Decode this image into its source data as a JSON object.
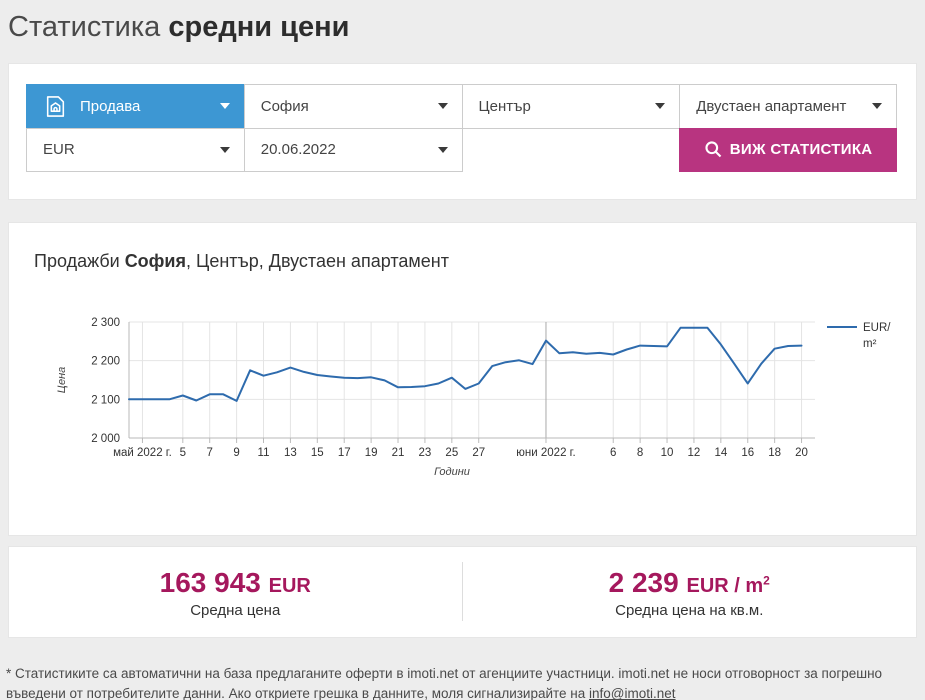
{
  "page": {
    "accent_blue": "#3d97d3",
    "accent_magenta": "#b83480",
    "stat_color": "#a5185d",
    "line_color": "#2e6bad"
  },
  "header": {
    "title_light": "Статистика",
    "title_bold": "средни цени"
  },
  "filters": {
    "deal_type": {
      "value": "Продава"
    },
    "city": {
      "value": "София"
    },
    "district": {
      "value": "Център"
    },
    "property_type": {
      "value": "Двустаен апартамент"
    },
    "currency": {
      "value": "EUR"
    },
    "date": {
      "value": "20.06.2022"
    },
    "submit_label": "ВИЖ СТАТИСТИКА"
  },
  "chart": {
    "title_prefix": "Продажби ",
    "title_city": "София",
    "title_rest": ", Център, Двустаен апартамент"
  },
  "chart_data": {
    "type": "line",
    "title": "Продажби София, Център, Двустаен апартамент",
    "xlabel": "Години",
    "ylabel": "Цена",
    "ylim": [
      2000,
      2300
    ],
    "xlim": [
      1,
      52
    ],
    "grid": true,
    "legend_position": "top-right-outside",
    "legend": {
      "lines": [
        "EUR/",
        "m²"
      ]
    },
    "y_ticks": [
      {
        "v": 2000,
        "label": "2 000"
      },
      {
        "v": 2100,
        "label": "2 100"
      },
      {
        "v": 2200,
        "label": "2 200"
      },
      {
        "v": 2300,
        "label": "2 300"
      }
    ],
    "x_ticks": [
      {
        "x": 2,
        "label": "май 2022 г.",
        "month": false
      },
      {
        "x": 5,
        "label": "5",
        "month": false
      },
      {
        "x": 7,
        "label": "7",
        "month": false
      },
      {
        "x": 9,
        "label": "9",
        "month": false
      },
      {
        "x": 11,
        "label": "11",
        "month": false
      },
      {
        "x": 13,
        "label": "13",
        "month": false
      },
      {
        "x": 15,
        "label": "15",
        "month": false
      },
      {
        "x": 17,
        "label": "17",
        "month": false
      },
      {
        "x": 19,
        "label": "19",
        "month": false
      },
      {
        "x": 21,
        "label": "21",
        "month": false
      },
      {
        "x": 23,
        "label": "23",
        "month": false
      },
      {
        "x": 25,
        "label": "25",
        "month": false
      },
      {
        "x": 27,
        "label": "27",
        "month": false
      },
      {
        "x": 32,
        "label": "юни 2022 г.",
        "month": true
      },
      {
        "x": 37,
        "label": "6",
        "month": false
      },
      {
        "x": 39,
        "label": "8",
        "month": false
      },
      {
        "x": 41,
        "label": "10",
        "month": false
      },
      {
        "x": 43,
        "label": "12",
        "month": false
      },
      {
        "x": 45,
        "label": "14",
        "month": false
      },
      {
        "x": 47,
        "label": "16",
        "month": false
      },
      {
        "x": 49,
        "label": "18",
        "month": false
      },
      {
        "x": 51,
        "label": "20",
        "month": false
      }
    ],
    "series": [
      {
        "name": "EUR/m²",
        "color": "#2e6bad",
        "points": [
          [
            1,
            2100
          ],
          [
            2,
            2100
          ],
          [
            3,
            2100
          ],
          [
            4,
            2100
          ],
          [
            5,
            2110
          ],
          [
            6,
            2097
          ],
          [
            7,
            2113
          ],
          [
            8,
            2113
          ],
          [
            9,
            2096
          ],
          [
            10,
            2175
          ],
          [
            11,
            2161
          ],
          [
            12,
            2170
          ],
          [
            13,
            2182
          ],
          [
            14,
            2171
          ],
          [
            15,
            2163
          ],
          [
            16,
            2159
          ],
          [
            17,
            2156
          ],
          [
            18,
            2155
          ],
          [
            19,
            2157
          ],
          [
            20,
            2149
          ],
          [
            21,
            2131
          ],
          [
            22,
            2132
          ],
          [
            23,
            2134
          ],
          [
            24,
            2141
          ],
          [
            25,
            2156
          ],
          [
            26,
            2127
          ],
          [
            27,
            2141
          ],
          [
            28,
            2186
          ],
          [
            29,
            2196
          ],
          [
            30,
            2201
          ],
          [
            31,
            2191
          ],
          [
            32,
            2252
          ],
          [
            33,
            2219
          ],
          [
            34,
            2222
          ],
          [
            35,
            2218
          ],
          [
            36,
            2220
          ],
          [
            37,
            2216
          ],
          [
            38,
            2229
          ],
          [
            39,
            2239
          ],
          [
            40,
            2238
          ],
          [
            41,
            2237
          ],
          [
            42,
            2285
          ],
          [
            43,
            2285
          ],
          [
            44,
            2285
          ],
          [
            45,
            2242
          ],
          [
            46,
            2192
          ],
          [
            47,
            2141
          ],
          [
            48,
            2192
          ],
          [
            49,
            2231
          ],
          [
            50,
            2238
          ],
          [
            51,
            2239
          ]
        ]
      }
    ]
  },
  "stats": {
    "avg_price": {
      "value": "163 943",
      "unit": "EUR",
      "label": "Средна цена"
    },
    "avg_price_sqm": {
      "value": "2 239",
      "unit_prefix": "EUR / m",
      "unit_sup": "2",
      "label": "Средна цена на кв.м."
    }
  },
  "footer": {
    "text_before_link": "* Статистиките са автоматични на база предлаганите оферти в imoti.net от агенциите участници. imoti.net не носи отговорност за погрешно въведени от потребителите данни. Ако откриете грешка в данните, моля сигнализирайте на ",
    "link": "info@imoti.net"
  }
}
